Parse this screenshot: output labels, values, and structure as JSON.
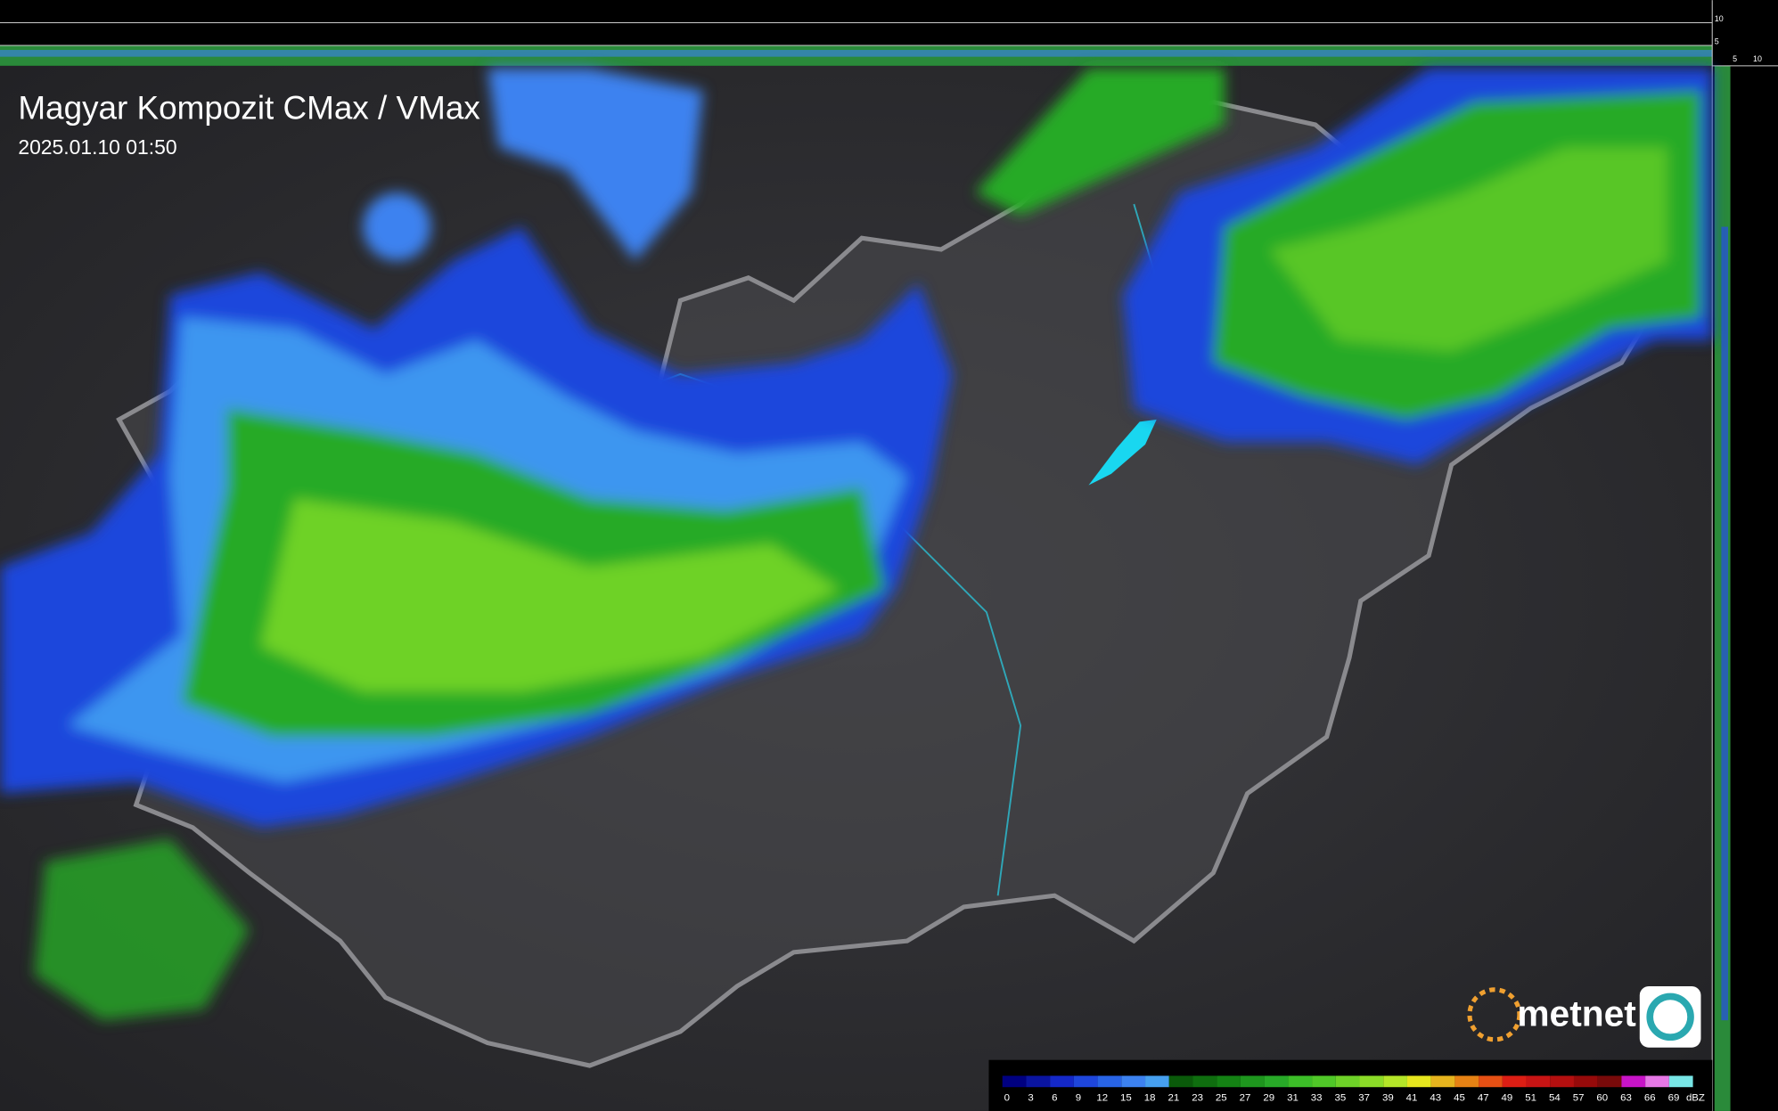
{
  "header": {
    "title": "Magyar Kompozit CMax / VMax",
    "timestamp": "2025.01.10 01:50"
  },
  "side_scale": {
    "right_labels": [
      "10",
      "5"
    ],
    "bottom_labels": [
      "5",
      "10"
    ]
  },
  "legend": {
    "labels": [
      0,
      3,
      6,
      9,
      12,
      15,
      18,
      21,
      23,
      25,
      27,
      29,
      31,
      33,
      35,
      37,
      39,
      41,
      43,
      45,
      47,
      49,
      51,
      54,
      57,
      60,
      63,
      66,
      69
    ],
    "colors": [
      "#000080",
      "#0a14a0",
      "#1428c8",
      "#1e46dc",
      "#2864e6",
      "#3c82f0",
      "#46a0f0",
      "#0a5a0a",
      "#0f6e0f",
      "#148214",
      "#1e961e",
      "#28aa28",
      "#3cbe28",
      "#50c828",
      "#6ed228",
      "#8cdc28",
      "#b4e628",
      "#e6e61e",
      "#e6b41e",
      "#e68214",
      "#e65014",
      "#dc1e14",
      "#c81414",
      "#b40f0f",
      "#960a0a",
      "#780a0a",
      "#c814c8",
      "#e678e6",
      "#78e6e6"
    ],
    "unit": "dBZ"
  },
  "logo": {
    "text": "metnet"
  }
}
